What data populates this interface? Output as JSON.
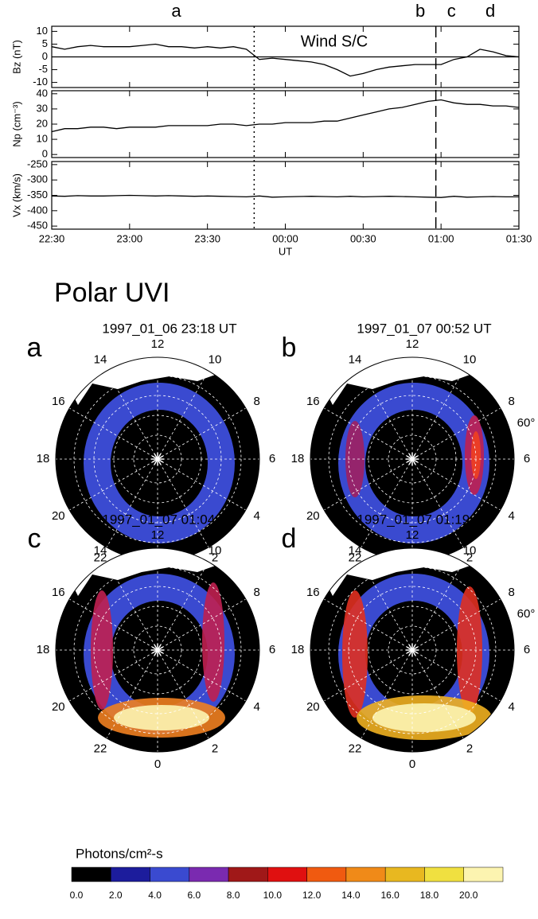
{
  "chart_data": [
    {
      "type": "line",
      "ylabel": "Bz (nT)",
      "annotation": "Wind S/C",
      "zero_line": true,
      "color": "#000000",
      "markers": [
        {
          "label": "a",
          "x": "23:18"
        },
        {
          "label": "b",
          "x": "00:52"
        },
        {
          "label": "c",
          "x": "01:04"
        },
        {
          "label": "d",
          "x": "01:19"
        }
      ],
      "vlines": [
        {
          "x": "23:48",
          "style": "dotted"
        },
        {
          "x": "00:58",
          "style": "dashed"
        }
      ],
      "x": [
        "22:30",
        "22:35",
        "22:40",
        "22:45",
        "22:50",
        "22:55",
        "23:00",
        "23:05",
        "23:10",
        "23:15",
        "23:20",
        "23:25",
        "23:30",
        "23:35",
        "23:40",
        "23:45",
        "23:50",
        "23:55",
        "00:00",
        "00:05",
        "00:10",
        "00:15",
        "00:20",
        "00:25",
        "00:30",
        "00:35",
        "00:40",
        "00:45",
        "00:50",
        "00:55",
        "01:00",
        "01:05",
        "01:10",
        "01:15",
        "01:20",
        "01:25",
        "01:30"
      ],
      "values": [
        4,
        3,
        4,
        4.5,
        4,
        4,
        4,
        4.5,
        5,
        4,
        4,
        3.5,
        4,
        3.5,
        4,
        3,
        -1,
        -0.5,
        -1,
        -1.5,
        -2,
        -3,
        -5,
        -7.5,
        -6.5,
        -5,
        -4,
        -3.5,
        -3,
        -3,
        -3,
        -1,
        0,
        3,
        2,
        0.5,
        0
      ],
      "ylim": [
        -12,
        12
      ],
      "yticks": [
        -10,
        -5,
        0,
        5,
        10
      ]
    },
    {
      "type": "line",
      "ylabel": "Np (cm⁻³)",
      "color": "#000000",
      "x": [
        "22:30",
        "22:35",
        "22:40",
        "22:45",
        "22:50",
        "22:55",
        "23:00",
        "23:05",
        "23:10",
        "23:15",
        "23:20",
        "23:25",
        "23:30",
        "23:35",
        "23:40",
        "23:45",
        "23:50",
        "23:55",
        "00:00",
        "00:05",
        "00:10",
        "00:15",
        "00:20",
        "00:25",
        "00:30",
        "00:35",
        "00:40",
        "00:45",
        "00:50",
        "00:55",
        "01:00",
        "01:05",
        "01:10",
        "01:15",
        "01:20",
        "01:25",
        "01:30"
      ],
      "values": [
        15,
        17,
        17,
        18,
        18,
        17,
        18,
        18,
        18,
        19,
        19,
        19,
        19,
        20,
        20,
        19,
        20,
        20,
        21,
        21,
        21,
        22,
        22,
        24,
        26,
        28,
        30,
        31,
        33,
        35,
        36,
        34,
        33,
        33,
        32,
        32,
        31
      ],
      "ylim": [
        -2,
        42
      ],
      "yticks": [
        0,
        10,
        20,
        30,
        40
      ]
    },
    {
      "type": "line",
      "ylabel": "Vx (km/s)",
      "xlabel": "UT",
      "color": "#000000",
      "x": [
        "22:30",
        "22:35",
        "22:40",
        "22:45",
        "22:50",
        "22:55",
        "23:00",
        "23:05",
        "23:10",
        "23:15",
        "23:20",
        "23:25",
        "23:30",
        "23:35",
        "23:40",
        "23:45",
        "23:50",
        "23:55",
        "00:00",
        "00:05",
        "00:10",
        "00:15",
        "00:20",
        "00:25",
        "00:30",
        "00:35",
        "00:40",
        "00:45",
        "00:50",
        "00:55",
        "01:00",
        "01:05",
        "01:10",
        "01:15",
        "01:20",
        "01:25",
        "01:30"
      ],
      "values": [
        -352,
        -353,
        -351,
        -352,
        -352,
        -351,
        -350,
        -351,
        -352,
        -351,
        -352,
        -353,
        -352,
        -353,
        -354,
        -355,
        -352,
        -356,
        -355,
        -354,
        -353,
        -354,
        -355,
        -353,
        -355,
        -354,
        -353,
        -354,
        -355,
        -356,
        -357,
        -353,
        -356,
        -355,
        -354,
        -355,
        -355
      ],
      "xlim": [
        "22:30",
        "01:30"
      ],
      "xticks": [
        "22:30",
        "23:00",
        "23:30",
        "00:00",
        "00:30",
        "01:00",
        "01:30"
      ],
      "ylim": [
        -460,
        -240
      ],
      "yticks": [
        -450,
        -400,
        -350,
        -300,
        -250
      ]
    }
  ],
  "polar_uvi": {
    "title": "Polar UVI",
    "lat_label": "60°",
    "mlt_labels": [
      12,
      14,
      10,
      16,
      8,
      18,
      6,
      20,
      4,
      22,
      0,
      2
    ],
    "panels": [
      {
        "letter": "a",
        "title": "1997_01_06 23:18 UT"
      },
      {
        "letter": "b",
        "title": "1997_01_07 00:52 UT"
      },
      {
        "letter": "c",
        "title": "1997_01_07 01:04 UT"
      },
      {
        "letter": "d",
        "title": "1997_01_07 01:19 UT"
      }
    ]
  },
  "colorbar": {
    "label": "Photons/cm²-s",
    "colors": [
      "#000000",
      "#1c1c9c",
      "#3a4ad0",
      "#7a2ab0",
      "#a01818",
      "#e01010",
      "#f05a10",
      "#f08a18",
      "#e8b820",
      "#f0e040",
      "#fcf4b0"
    ],
    "ticks": [
      {
        "value": 0,
        "label": "0.0"
      },
      {
        "value": 2,
        "label": "2.0"
      },
      {
        "value": 4,
        "label": "4.0"
      },
      {
        "value": 6,
        "label": "6.0"
      },
      {
        "value": 8,
        "label": "8.0"
      },
      {
        "value": 10,
        "label": "10.0"
      },
      {
        "value": 12,
        "label": "12.0"
      },
      {
        "value": 14,
        "label": "14.0"
      },
      {
        "value": 16,
        "label": "16.0"
      },
      {
        "value": 18,
        "label": "18.0"
      },
      {
        "value": 20,
        "label": "20.0"
      }
    ]
  }
}
